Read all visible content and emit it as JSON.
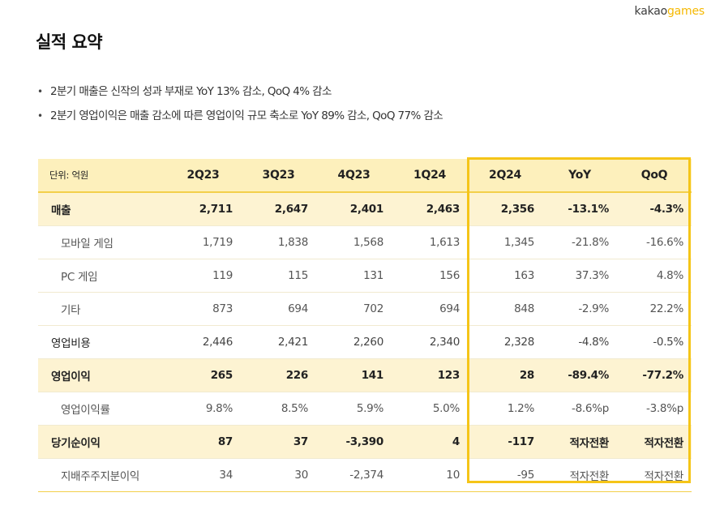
{
  "logo": {
    "brand_a": "kakao",
    "brand_b": "games"
  },
  "page_title": "실적 요약",
  "bullets": [
    "2분기 매출은 신작의 성과 부재로 YoY 13% 감소, QoQ 4% 감소",
    "2분기 영업이익은 매출 감소에 따른 영업이익 규모 축소로 YoY 89% 감소, QoQ 77% 감소"
  ],
  "table": {
    "unit_label": "단위: 억원",
    "columns": [
      "2Q23",
      "3Q23",
      "4Q23",
      "1Q24",
      "2Q24",
      "YoY",
      "QoQ"
    ],
    "rows": [
      {
        "label": "매출",
        "values": [
          "2,711",
          "2,647",
          "2,401",
          "2,463",
          "2,356",
          "-13.1%",
          "-4.3%"
        ]
      },
      {
        "label": "모바일 게임",
        "values": [
          "1,719",
          "1,838",
          "1,568",
          "1,613",
          "1,345",
          "-21.8%",
          "-16.6%"
        ]
      },
      {
        "label": "PC 게임",
        "values": [
          "119",
          "115",
          "131",
          "156",
          "163",
          "37.3%",
          "4.8%"
        ]
      },
      {
        "label": "기타",
        "values": [
          "873",
          "694",
          "702",
          "694",
          "848",
          "-2.9%",
          "22.2%"
        ]
      },
      {
        "label": "영업비용",
        "values": [
          "2,446",
          "2,421",
          "2,260",
          "2,340",
          "2,328",
          "-4.8%",
          "-0.5%"
        ]
      },
      {
        "label": "영업이익",
        "values": [
          "265",
          "226",
          "141",
          "123",
          "28",
          "-89.4%",
          "-77.2%"
        ]
      },
      {
        "label": "영업이익률",
        "values": [
          "9.8%",
          "8.5%",
          "5.9%",
          "5.0%",
          "1.2%",
          "-8.6%p",
          "-3.8%p"
        ]
      },
      {
        "label": "당기순이익",
        "values": [
          "87",
          "37",
          "-3,390",
          "4",
          "-117",
          "적자전환",
          "적자전환"
        ]
      },
      {
        "label": "지배주주지분이익",
        "values": [
          "34",
          "30",
          "-2,374",
          "10",
          "-95",
          "적자전환",
          "적자전환"
        ]
      }
    ]
  },
  "colors": {
    "header_bg": "#fdf0bc",
    "highlight_row_bg": "#fdf3d2",
    "highlight_frame": "#f5c518",
    "brand_dot": "#f5b800"
  }
}
